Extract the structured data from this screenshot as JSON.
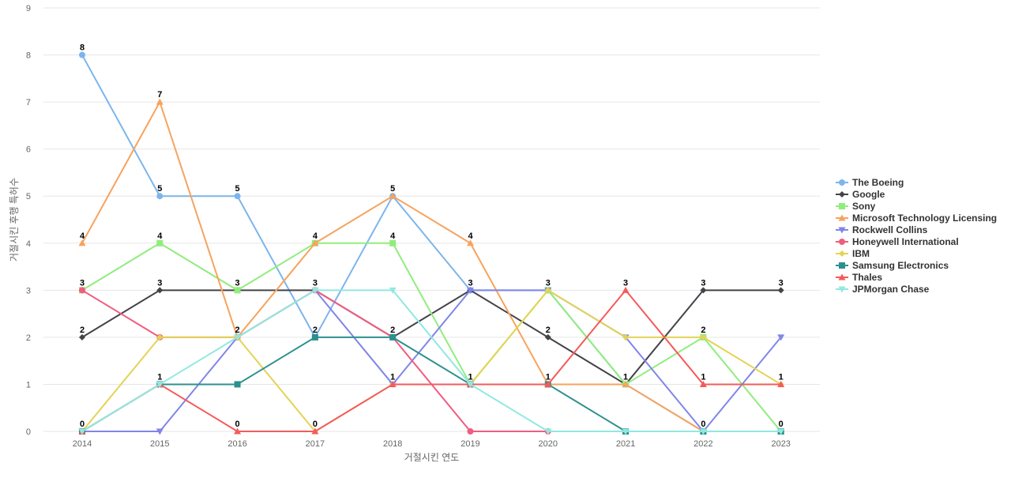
{
  "chart_data": {
    "type": "line",
    "title": "",
    "xlabel": "거절시킨 연도",
    "ylabel": "거절시킨 후행 특허수",
    "categories": [
      "2014",
      "2015",
      "2016",
      "2017",
      "2018",
      "2019",
      "2020",
      "2021",
      "2022",
      "2023"
    ],
    "ylim": [
      0,
      9
    ],
    "yticks": [
      0,
      1,
      2,
      3,
      4,
      5,
      6,
      7,
      8,
      9
    ],
    "grid": true,
    "legend_position": "right",
    "data_labels_series": [
      "The Boeing",
      "Microsoft Technology Licensing",
      "Sony",
      "Google",
      "Thales"
    ],
    "series": [
      {
        "name": "The Boeing",
        "color": "#7cb5ec",
        "marker": "circle",
        "values": [
          8,
          5,
          5,
          2,
          5,
          3,
          3,
          1,
          0,
          0
        ]
      },
      {
        "name": "Google",
        "color": "#434348",
        "marker": "diamond",
        "values": [
          2,
          3,
          3,
          3,
          2,
          3,
          2,
          1,
          3,
          3
        ]
      },
      {
        "name": "Sony",
        "color": "#90ed7d",
        "marker": "square",
        "values": [
          3,
          4,
          3,
          4,
          4,
          1,
          3,
          1,
          2,
          0
        ]
      },
      {
        "name": "Microsoft Technology Licensing",
        "color": "#f7a35c",
        "marker": "triangle",
        "values": [
          4,
          7,
          2,
          4,
          5,
          4,
          1,
          1,
          0,
          0
        ]
      },
      {
        "name": "Rockwell Collins",
        "color": "#8085e9",
        "marker": "triangle-down",
        "values": [
          0,
          0,
          2,
          3,
          1,
          3,
          3,
          2,
          0,
          2
        ]
      },
      {
        "name": "Honeywell International",
        "color": "#f15c80",
        "marker": "circle",
        "values": [
          3,
          2,
          2,
          3,
          2,
          0,
          0,
          0,
          0,
          0
        ]
      },
      {
        "name": "IBM",
        "color": "#e4d354",
        "marker": "diamond",
        "values": [
          0,
          2,
          2,
          0,
          1,
          1,
          3,
          2,
          2,
          1
        ]
      },
      {
        "name": "Samsung Electronics",
        "color": "#2b908f",
        "marker": "square",
        "values": [
          0,
          1,
          1,
          2,
          2,
          1,
          1,
          0,
          0,
          0
        ]
      },
      {
        "name": "Thales",
        "color": "#f45b5b",
        "marker": "triangle",
        "values": [
          0,
          1,
          0,
          0,
          1,
          1,
          1,
          3,
          1,
          1
        ]
      },
      {
        "name": "JPMorgan Chase",
        "color": "#91e8e1",
        "marker": "triangle-down",
        "values": [
          0,
          1,
          2,
          3,
          3,
          1,
          0,
          0,
          0,
          0
        ]
      }
    ]
  }
}
